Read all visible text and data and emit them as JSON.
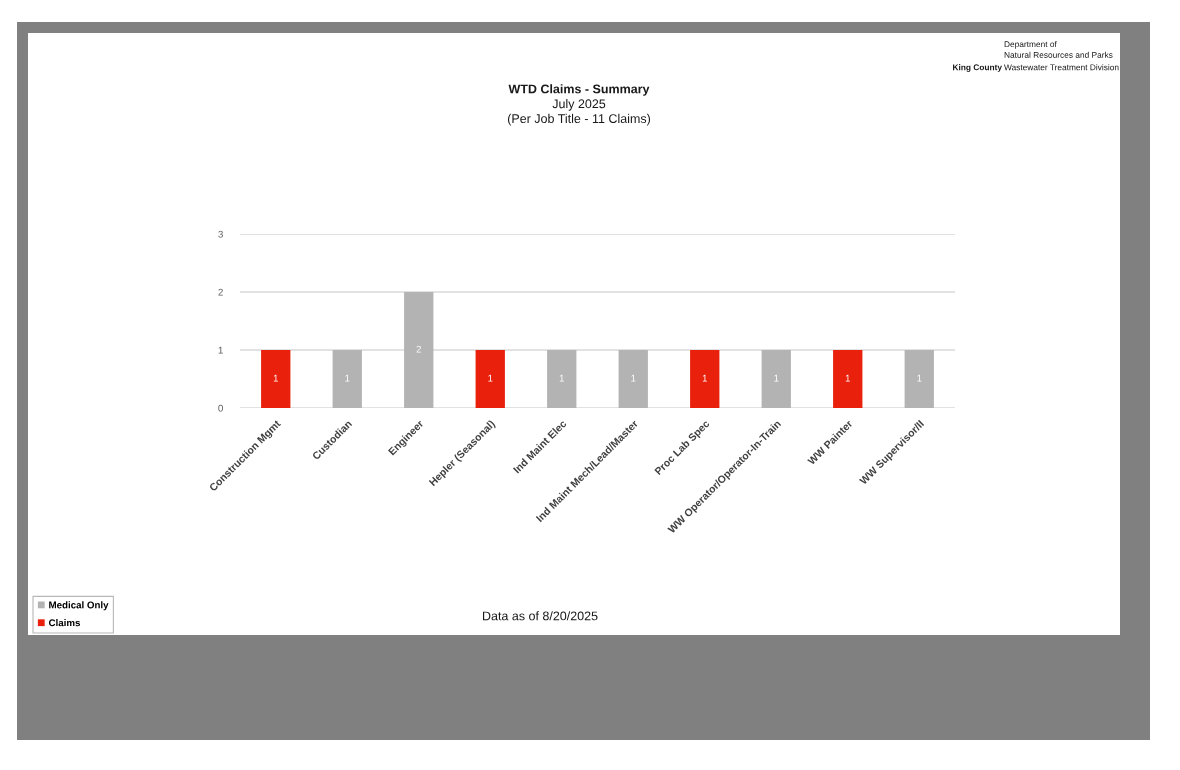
{
  "chart_data": {
    "type": "bar",
    "title": "WTD Claims - Summary",
    "subtitle": "July 2025\n(Per Job Title - 11 Claims)",
    "categories": [
      "Construction Mgmt",
      "Custodian",
      "Engineer",
      "Hepler (Seasonal)",
      "Ind Maint Elec",
      "Ind Maint Mech/Lead/Master",
      "Proc Lab Spec",
      "WW Operator/Operator-In-Train",
      "WW Painter",
      "WW Supervisor/II"
    ],
    "series": [
      {
        "name": "Medical Only",
        "color": "#b3b3b3",
        "values": [
          null,
          1,
          2,
          null,
          1,
          1,
          null,
          1,
          null,
          1
        ]
      },
      {
        "name": "Claims",
        "color": "#e8200c",
        "values": [
          1,
          null,
          null,
          1,
          null,
          null,
          1,
          null,
          1,
          null
        ]
      }
    ],
    "stacked": true,
    "data_labels": true,
    "ylim": [
      0,
      3
    ],
    "yticks": [
      0,
      1,
      2,
      3
    ],
    "grid": "y",
    "legend": "bottom left",
    "annotations": [
      "Department of\nNatural Resources and Parks",
      "King County",
      "Wastewater Treatment Division",
      "Data as of 8/20/2025"
    ]
  }
}
